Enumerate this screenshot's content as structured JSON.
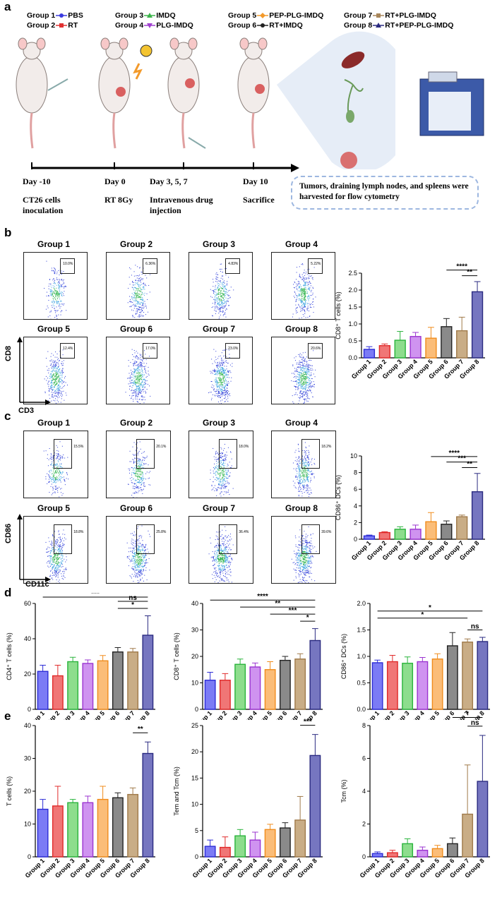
{
  "panels": {
    "a": "a",
    "b": "b",
    "c": "c",
    "d": "d",
    "e": "e"
  },
  "legend": [
    {
      "label": "Group 1",
      "name": "PBS",
      "color": "#3a3ae0",
      "marker": "circle"
    },
    {
      "label": "Group 2",
      "name": "RT",
      "color": "#e03030",
      "marker": "square"
    },
    {
      "label": "Group 3",
      "name": "IMDQ",
      "color": "#3cb44b",
      "marker": "triangle"
    },
    {
      "label": "Group 4",
      "name": "PLG-IMDQ",
      "color": "#a040d0",
      "marker": "triangle-down"
    },
    {
      "label": "Group 5",
      "name": "PEP-PLG-IMDQ",
      "color": "#f39a2b",
      "marker": "diamond"
    },
    {
      "label": "Group 6",
      "name": "RT+IMDQ",
      "color": "#222222",
      "marker": "circle"
    },
    {
      "label": "Group 7",
      "name": "RT+PLG-IMDQ",
      "color": "#a8865a",
      "marker": "square"
    },
    {
      "label": "Group 8",
      "name": "RT+PEP-PLG-IMDQ",
      "color": "#2a2a80",
      "marker": "triangle"
    }
  ],
  "timeline": {
    "days": [
      "Day -10",
      "Day 0",
      "Day 3, 5, 7",
      "Day 10"
    ],
    "events": [
      "CT26 cells\ninoculation",
      "RT 8Gy",
      "Intravenous drug\ninjection",
      "Sacrifice"
    ],
    "note": "Tumors, draining lymph nodes, and spleens were harvested for flow cytometry"
  },
  "flow_b": {
    "xaxis": "CD3",
    "yaxis": "CD8",
    "groups": [
      "Group 1",
      "Group 2",
      "Group 3",
      "Group 4",
      "Group 5",
      "Group 6",
      "Group 7",
      "Group 8"
    ],
    "gates": [
      "10.0%",
      "6.36%",
      "4.83%",
      "5.22%",
      "12.4%",
      "17.0%",
      "23.0%",
      "20.6%"
    ]
  },
  "flow_c": {
    "xaxis": "CD11c",
    "yaxis": "CD86",
    "groups": [
      "Group 1",
      "Group 2",
      "Group 3",
      "Group 4",
      "Group 5",
      "Group 6",
      "Group 7",
      "Group 8"
    ],
    "gates": [
      "15.5%",
      "20.1%",
      "18.0%",
      "18.2%",
      "18.8%",
      "25.8%",
      "36.4%",
      "39.6%"
    ]
  },
  "colors": {
    "fills": [
      "#7b7bf5",
      "#f07676",
      "#8ddd8d",
      "#cf93f0",
      "#fbbd78",
      "#8a8a8a",
      "#c9ad86",
      "#7676c0"
    ],
    "edges": [
      "#2c2cd6",
      "#e02a2a",
      "#2ab43c",
      "#9b34d0",
      "#f08c1c",
      "#222222",
      "#a07a4a",
      "#2a2a80"
    ]
  },
  "chart_data": [
    {
      "id": "b",
      "type": "bar",
      "ylabel": "CD8⁺ T cells (%)",
      "ylim": [
        0,
        2.5
      ],
      "yticks": [
        "0.0",
        "0.5",
        "1.0",
        "1.5",
        "2.0",
        "2.5"
      ],
      "categories": [
        "Group 1",
        "Group 2",
        "Group 3",
        "Group 4",
        "Group 5",
        "Group 6",
        "Group 7",
        "Group 8"
      ],
      "values": [
        0.25,
        0.36,
        0.52,
        0.63,
        0.58,
        0.92,
        0.8,
        1.95
      ],
      "errors": [
        0.08,
        0.05,
        0.26,
        0.12,
        0.32,
        0.24,
        0.4,
        0.3
      ],
      "sig": [
        {
          "from": 6,
          "to": 8,
          "label": "****"
        },
        {
          "from": 7,
          "to": 8,
          "label": "**"
        }
      ]
    },
    {
      "id": "c",
      "type": "bar",
      "ylabel": "CD86⁺ DCs (%)",
      "ylim": [
        0,
        10
      ],
      "yticks": [
        "0",
        "2",
        "4",
        "6",
        "8",
        "10"
      ],
      "categories": [
        "Group 1",
        "Group 2",
        "Group 3",
        "Group 4",
        "Group 5",
        "Group 6",
        "Group 7",
        "Group 8"
      ],
      "values": [
        0.4,
        0.8,
        1.2,
        1.2,
        2.1,
        1.8,
        2.7,
        5.7
      ],
      "errors": [
        0.1,
        0.1,
        0.3,
        0.5,
        1.1,
        0.4,
        0.2,
        2.2
      ],
      "sig": [
        {
          "from": 5,
          "to": 8,
          "label": "****"
        },
        {
          "from": 6,
          "to": 8,
          "label": "***"
        },
        {
          "from": 7,
          "to": 8,
          "label": "**"
        }
      ]
    },
    {
      "id": "d1",
      "type": "bar",
      "ylabel": "CD4⁺ T cells (%)",
      "ylim": [
        0,
        60
      ],
      "yticks": [
        "0",
        "20",
        "40",
        "60"
      ],
      "categories": [
        "Group 1",
        "Group 2",
        "Group 3",
        "Group 4",
        "Group 5",
        "Group 6",
        "Group 7",
        "Group 8"
      ],
      "values": [
        21.5,
        19,
        27,
        26,
        27.5,
        32.5,
        32.5,
        42
      ],
      "errors": [
        3.5,
        6,
        2.5,
        2,
        3,
        2.5,
        2,
        11
      ],
      "sig": [
        {
          "from": 1,
          "to": 8,
          "label": "***"
        },
        {
          "from": 6,
          "to": 8,
          "label": "*"
        },
        {
          "from": 6,
          "to": 8,
          "label": "ns"
        }
      ]
    },
    {
      "id": "d2",
      "type": "bar",
      "ylabel": "CD8⁺ T cells (%)",
      "ylim": [
        0,
        40
      ],
      "yticks": [
        "0",
        "10",
        "20",
        "30",
        "40"
      ],
      "categories": [
        "Group 1",
        "Group 2",
        "Group 3",
        "Group 4",
        "Group 5",
        "Group 6",
        "Group 7",
        "Group 8"
      ],
      "values": [
        11,
        11,
        17,
        16,
        15,
        18.5,
        19,
        26
      ],
      "errors": [
        3,
        2.5,
        2,
        1.5,
        3,
        1.5,
        2,
        4.5
      ],
      "sig": [
        {
          "from": 1,
          "to": 8,
          "label": "****"
        },
        {
          "from": 3,
          "to": 8,
          "label": "**"
        },
        {
          "from": 5,
          "to": 8,
          "label": "***"
        },
        {
          "from": 7,
          "to": 8,
          "label": "*"
        }
      ]
    },
    {
      "id": "d3",
      "type": "bar",
      "ylabel": "CD86⁺ DCs (%)",
      "ylim": [
        0,
        2.0
      ],
      "yticks": [
        "0.0",
        "0.5",
        "1.0",
        "1.5",
        "2.0"
      ],
      "categories": [
        "Group 1",
        "Group 2",
        "Group 3",
        "Group 4",
        "Group 5",
        "Group 6",
        "Group 7",
        "Group 8"
      ],
      "values": [
        0.88,
        0.9,
        0.87,
        0.9,
        0.95,
        1.2,
        1.27,
        1.28
      ],
      "errors": [
        0.05,
        0.12,
        0.12,
        0.08,
        0.1,
        0.25,
        0.06,
        0.08
      ],
      "sig": [
        {
          "from": 1,
          "to": 8,
          "label": "*"
        },
        {
          "from": 1,
          "to": 7,
          "label": "*"
        },
        {
          "from": 7,
          "to": 8,
          "label": "ns"
        }
      ]
    },
    {
      "id": "e1",
      "type": "bar",
      "ylabel": "T cells (%)",
      "ylim": [
        0,
        40
      ],
      "yticks": [
        "0",
        "10",
        "20",
        "30",
        "40"
      ],
      "categories": [
        "Group 1",
        "Group 2",
        "Group 3",
        "Group 4",
        "Group 5",
        "Group 6",
        "Group 7",
        "Group 8"
      ],
      "values": [
        14.5,
        15.5,
        16.5,
        16.5,
        17.5,
        18,
        19,
        31.5
      ],
      "errors": [
        3,
        6,
        1,
        2,
        4,
        1.5,
        2,
        3.5
      ],
      "sig": [
        {
          "from": 7,
          "to": 8,
          "label": "**"
        }
      ]
    },
    {
      "id": "e2",
      "type": "bar",
      "ylabel": "Tem and Tcm (%)",
      "ylim": [
        0,
        25
      ],
      "yticks": [
        "0",
        "5",
        "10",
        "15",
        "20",
        "25"
      ],
      "categories": [
        "Group 1",
        "Group 2",
        "Group 3",
        "Group 4",
        "Group 5",
        "Group 6",
        "Group 7",
        "Group 8"
      ],
      "values": [
        2,
        1.8,
        4,
        3.2,
        5.2,
        5.5,
        7,
        19.3
      ],
      "errors": [
        1.2,
        2,
        1.2,
        1.5,
        1,
        1,
        4.5,
        4
      ],
      "sig": [
        {
          "from": 7,
          "to": 8,
          "label": "***"
        }
      ]
    },
    {
      "id": "e3",
      "type": "bar",
      "ylabel": "Tcm (%)",
      "ylim": [
        0,
        8
      ],
      "yticks": [
        "0",
        "2",
        "4",
        "6",
        "8"
      ],
      "categories": [
        "Group 1",
        "Group 2",
        "Group 3",
        "Group 4",
        "Group 5",
        "Group 6",
        "Group 7",
        "Group 8"
      ],
      "values": [
        0.2,
        0.25,
        0.8,
        0.4,
        0.5,
        0.8,
        2.6,
        4.6
      ],
      "errors": [
        0.1,
        0.15,
        0.3,
        0.2,
        0.2,
        0.35,
        3,
        2.8
      ],
      "sig": [
        {
          "from": 6,
          "to": 8,
          "label": "*"
        },
        {
          "from": 7,
          "to": 8,
          "label": "ns"
        }
      ]
    }
  ]
}
